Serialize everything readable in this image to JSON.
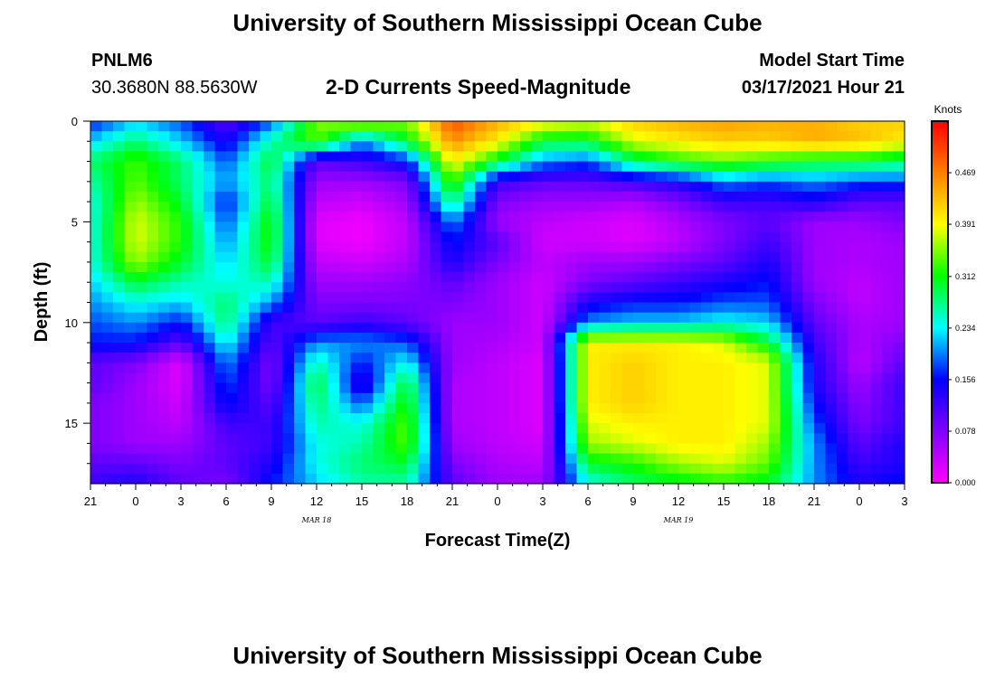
{
  "header": {
    "title": "University of Southern Mississippi Ocean Cube",
    "footer_title": "University of Southern Mississippi Ocean Cube",
    "station_id": "PNLM6",
    "station_coords": "30.3680N 88.5630W",
    "plot_title": "2-D Currents Speed-Magnitude",
    "model_label": "Model Start Time",
    "model_time": "03/17/2021 Hour 21"
  },
  "colors": {
    "scale": [
      "#ff00ff",
      "#8000ff",
      "#0000ff",
      "#00ffff",
      "#00ff00",
      "#ffff00",
      "#ff8000",
      "#ff0000"
    ]
  },
  "chart_data": {
    "type": "heatmap",
    "title": "2-D Currents Speed-Magnitude",
    "xlabel": "Forecast Time(Z)",
    "ylabel": "Depth (ft)",
    "x_ticks": [
      "21",
      "0",
      "3",
      "6",
      "9",
      "12",
      "15",
      "18",
      "21",
      "0",
      "3",
      "6",
      "9",
      "12",
      "15",
      "18",
      "21",
      "0",
      "3"
    ],
    "x_date_labels": [
      {
        "label": "MAR 18",
        "at_hour": 15
      },
      {
        "label": "MAR 19",
        "at_hour": 39
      }
    ],
    "x_range_hours": [
      0,
      54
    ],
    "y_ticks": [
      "0",
      "5",
      "10",
      "15"
    ],
    "y_range": [
      0,
      18
    ],
    "colorbar": {
      "unit": "Knots",
      "range": [
        0,
        0.547
      ],
      "labels": [
        "0.469",
        "0.391",
        "0.312",
        "0.234",
        "0.156",
        "0.078",
        "0.000"
      ]
    },
    "depths_ft": [
      0,
      1,
      2,
      3,
      4,
      5,
      6,
      7,
      8,
      9,
      10,
      11,
      12,
      13,
      14,
      15,
      16,
      17,
      18
    ],
    "hours": [
      0,
      3,
      6,
      9,
      12,
      15,
      18,
      21,
      24,
      27,
      30,
      33,
      36,
      39,
      42,
      45,
      48,
      51,
      54
    ],
    "values": [
      [
        0.16,
        0.22,
        0.18,
        0.1,
        0.18,
        0.35,
        0.38,
        0.35,
        0.5,
        0.44,
        0.4,
        0.38,
        0.42,
        0.44,
        0.45,
        0.44,
        0.44,
        0.42,
        0.42
      ],
      [
        0.22,
        0.28,
        0.22,
        0.14,
        0.26,
        0.34,
        0.2,
        0.3,
        0.46,
        0.4,
        0.3,
        0.3,
        0.38,
        0.4,
        0.42,
        0.42,
        0.44,
        0.43,
        0.4
      ],
      [
        0.28,
        0.33,
        0.28,
        0.18,
        0.3,
        0.1,
        0.12,
        0.16,
        0.4,
        0.3,
        0.2,
        0.18,
        0.28,
        0.32,
        0.34,
        0.32,
        0.3,
        0.3,
        0.28
      ],
      [
        0.26,
        0.34,
        0.28,
        0.2,
        0.28,
        0.06,
        0.06,
        0.08,
        0.34,
        0.12,
        0.1,
        0.1,
        0.12,
        0.14,
        0.2,
        0.18,
        0.2,
        0.18,
        0.18
      ],
      [
        0.24,
        0.36,
        0.3,
        0.16,
        0.3,
        0.04,
        0.03,
        0.06,
        0.28,
        0.08,
        0.06,
        0.06,
        0.05,
        0.08,
        0.12,
        0.12,
        0.14,
        0.1,
        0.1
      ],
      [
        0.24,
        0.38,
        0.32,
        0.18,
        0.32,
        0.02,
        0.01,
        0.04,
        0.2,
        0.06,
        0.04,
        0.03,
        0.02,
        0.05,
        0.08,
        0.1,
        0.06,
        0.06,
        0.08
      ],
      [
        0.24,
        0.38,
        0.32,
        0.2,
        0.32,
        0.02,
        0.01,
        0.04,
        0.16,
        0.1,
        0.03,
        0.03,
        0.02,
        0.04,
        0.08,
        0.12,
        0.06,
        0.05,
        0.06
      ],
      [
        0.24,
        0.36,
        0.3,
        0.22,
        0.3,
        0.04,
        0.03,
        0.05,
        0.14,
        0.08,
        0.04,
        0.06,
        0.06,
        0.08,
        0.1,
        0.14,
        0.06,
        0.05,
        0.06
      ],
      [
        0.22,
        0.3,
        0.26,
        0.24,
        0.26,
        0.06,
        0.06,
        0.07,
        0.1,
        0.06,
        0.03,
        0.08,
        0.1,
        0.12,
        0.14,
        0.16,
        0.06,
        0.04,
        0.06
      ],
      [
        0.2,
        0.24,
        0.22,
        0.28,
        0.2,
        0.08,
        0.08,
        0.08,
        0.08,
        0.06,
        0.03,
        0.14,
        0.16,
        0.16,
        0.18,
        0.18,
        0.08,
        0.04,
        0.06
      ],
      [
        0.18,
        0.2,
        0.16,
        0.28,
        0.12,
        0.1,
        0.12,
        0.1,
        0.06,
        0.06,
        0.03,
        0.2,
        0.22,
        0.22,
        0.24,
        0.22,
        0.1,
        0.05,
        0.06
      ],
      [
        0.16,
        0.16,
        0.1,
        0.24,
        0.1,
        0.2,
        0.2,
        0.18,
        0.06,
        0.05,
        0.03,
        0.4,
        0.4,
        0.4,
        0.38,
        0.3,
        0.12,
        0.05,
        0.08
      ],
      [
        0.1,
        0.08,
        0.02,
        0.2,
        0.08,
        0.26,
        0.16,
        0.24,
        0.06,
        0.04,
        0.02,
        0.4,
        0.42,
        0.4,
        0.4,
        0.38,
        0.14,
        0.04,
        0.1
      ],
      [
        0.1,
        0.06,
        0.02,
        0.18,
        0.08,
        0.3,
        0.12,
        0.3,
        0.05,
        0.04,
        0.02,
        0.4,
        0.42,
        0.4,
        0.4,
        0.38,
        0.14,
        0.06,
        0.12
      ],
      [
        0.08,
        0.06,
        0.03,
        0.16,
        0.1,
        0.28,
        0.18,
        0.32,
        0.05,
        0.04,
        0.02,
        0.4,
        0.42,
        0.4,
        0.4,
        0.38,
        0.16,
        0.07,
        0.12
      ],
      [
        0.08,
        0.06,
        0.04,
        0.12,
        0.12,
        0.26,
        0.24,
        0.34,
        0.05,
        0.04,
        0.02,
        0.38,
        0.4,
        0.4,
        0.4,
        0.38,
        0.18,
        0.08,
        0.12
      ],
      [
        0.08,
        0.06,
        0.06,
        0.1,
        0.12,
        0.24,
        0.26,
        0.34,
        0.06,
        0.04,
        0.03,
        0.36,
        0.38,
        0.4,
        0.4,
        0.36,
        0.2,
        0.1,
        0.14
      ],
      [
        0.1,
        0.1,
        0.08,
        0.1,
        0.14,
        0.24,
        0.28,
        0.3,
        0.08,
        0.05,
        0.04,
        0.3,
        0.32,
        0.36,
        0.38,
        0.34,
        0.2,
        0.12,
        0.14
      ],
      [
        0.12,
        0.14,
        0.1,
        0.08,
        0.16,
        0.22,
        0.26,
        0.26,
        0.1,
        0.06,
        0.06,
        0.24,
        0.28,
        0.3,
        0.32,
        0.3,
        0.2,
        0.14,
        0.16
      ]
    ]
  }
}
